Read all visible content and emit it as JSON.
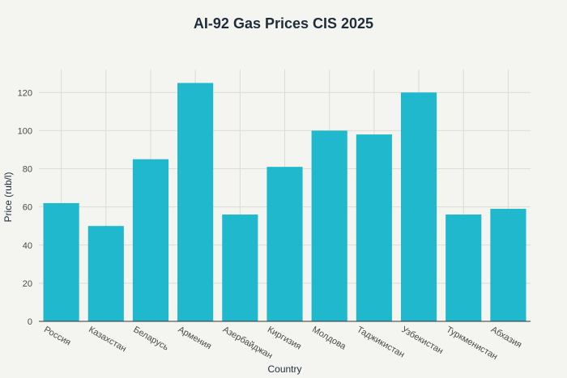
{
  "chart_data": {
    "type": "bar",
    "title": "AI-92 Gas Prices CIS 2025",
    "xlabel": "Country",
    "ylabel": "Price (rub/l)",
    "categories": [
      "Россия",
      "Казахстан",
      "Беларусь",
      "Армения",
      "Азербайджан",
      "Киргизия",
      "Молдова",
      "Таджикистан",
      "Узбекистан",
      "Туркменистан",
      "Абхазия"
    ],
    "values": [
      62,
      50,
      85,
      125,
      56,
      81,
      100,
      98,
      120,
      56,
      59
    ],
    "ylim": [
      0,
      132
    ],
    "yticks": [
      0,
      20,
      40,
      60,
      80,
      100,
      120
    ],
    "grid": true,
    "colors": {
      "bar": "#1fb8cd",
      "background": "#f4f4f0",
      "text": "#1f2d3a"
    }
  }
}
